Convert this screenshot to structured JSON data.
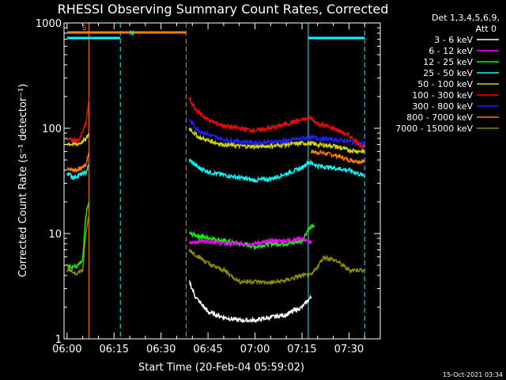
{
  "chart_data": {
    "type": "line",
    "title": "RHESSI Observing Summary Count Rates, Corrected",
    "xlabel": "Start Time (20-Feb-04 05:59:02)",
    "ylabel": "Corrected Count Rate (s⁻¹ detector⁻¹)",
    "yscale": "log",
    "ylim": [
      1,
      1000
    ],
    "xlim": [
      "05:59:02",
      "07:40:00"
    ],
    "x_ticks": [
      "06:00",
      "06:15",
      "06:30",
      "06:45",
      "07:00",
      "07:15",
      "07:30"
    ],
    "y_ticks": [
      "1",
      "10",
      "100",
      "1000"
    ],
    "legend": {
      "placement": "top-right",
      "header_line1": "Det 1,3,4,5,6,9,",
      "header_line2": "Att 0"
    },
    "footer_date": "15-Oct-2021 03:34",
    "markers": [
      {
        "label": "S",
        "color": "#ff8000",
        "x_start": "06:00",
        "x_end": "06:38"
      },
      {
        "label": "N",
        "color": "#00ffff",
        "x_start": "06:00",
        "x_end": "06:17"
      },
      {
        "label": "",
        "color": "#00ffff",
        "x_start": "07:17",
        "x_end": "07:35"
      }
    ],
    "vlines": [
      {
        "x": "06:07",
        "color": "#ff8000",
        "style": "solid"
      },
      {
        "x": "06:17",
        "color": "#00ffff",
        "style": "dashed"
      },
      {
        "x": "06:38",
        "color": "#ff8000",
        "style": "dashed"
      },
      {
        "x": "07:17",
        "color": "#00ffff",
        "style": "solid"
      },
      {
        "x": "07:35",
        "color": "#00ffff",
        "style": "dashed"
      }
    ],
    "series": [
      {
        "name": "3 - 6 keV",
        "color": "#ffffff",
        "segments": [
          {
            "t": [
              "06:39",
              "06:41",
              "06:45",
              "06:50",
              "06:55",
              "07:00",
              "07:05",
              "07:10",
              "07:15",
              "07:18"
            ],
            "v": [
              3.5,
              2.5,
              1.8,
              1.6,
              1.5,
              1.5,
              1.6,
              1.7,
              2.0,
              2.5
            ]
          }
        ]
      },
      {
        "name": "6 - 12 keV",
        "color": "#ff00ff",
        "segments": [
          {
            "t": [
              "06:39",
              "06:42",
              "06:46",
              "06:50",
              "06:55",
              "07:00",
              "07:05",
              "07:10",
              "07:15",
              "07:18"
            ],
            "v": [
              8,
              8.5,
              8.5,
              8,
              8,
              8,
              8.5,
              8.5,
              9,
              8
            ]
          }
        ]
      },
      {
        "name": "12 - 25 keV",
        "color": "#00ff00",
        "segments": [
          {
            "t": [
              "06:00",
              "06:03",
              "06:05",
              "06:06",
              "06:07"
            ],
            "v": [
              5,
              4.8,
              5.5,
              15,
              20
            ]
          },
          {
            "t": [
              "06:39",
              "06:42",
              "06:46",
              "06:50",
              "06:55",
              "07:00",
              "07:05",
              "07:10",
              "07:15",
              "07:17",
              "07:19"
            ],
            "v": [
              10,
              9.5,
              9,
              8.5,
              8,
              7.5,
              8,
              8,
              8.5,
              11,
              12
            ]
          }
        ]
      },
      {
        "name": "25 - 50 keV",
        "color": "#00ffff",
        "segments": [
          {
            "t": [
              "06:00",
              "06:02",
              "06:04",
              "06:05",
              "06:06",
              "06:07"
            ],
            "v": [
              38,
              34,
              36,
              37,
              38,
              45
            ]
          },
          {
            "t": [
              "06:39",
              "06:42",
              "06:46",
              "06:50",
              "06:55",
              "07:00",
              "07:05",
              "07:10",
              "07:15",
              "07:17",
              "07:20",
              "07:25",
              "07:30",
              "07:35"
            ],
            "v": [
              50,
              42,
              38,
              36,
              34,
              32,
              33,
              37,
              42,
              48,
              44,
              42,
              40,
              35
            ]
          }
        ]
      },
      {
        "name": "50 - 100 keV",
        "color": "#d4d400",
        "segments": [
          {
            "t": [
              "06:00",
              "06:02",
              "06:04",
              "06:06",
              "06:07"
            ],
            "v": [
              72,
              70,
              72,
              78,
              90
            ]
          },
          {
            "t": [
              "06:39",
              "06:42",
              "06:46",
              "06:50",
              "06:55",
              "07:00",
              "07:05",
              "07:10",
              "07:15",
              "07:17",
              "07:20",
              "07:25",
              "07:30",
              "07:35"
            ],
            "v": [
              100,
              82,
              75,
              70,
              68,
              67,
              68,
              70,
              72,
              72,
              70,
              68,
              62,
              60
            ]
          }
        ]
      },
      {
        "name": "100 - 300 keV",
        "color": "#ff0000",
        "segments": [
          {
            "t": [
              "06:00",
              "06:02",
              "06:04",
              "06:06",
              "06:07"
            ],
            "v": [
              80,
              76,
              78,
              110,
              190
            ]
          },
          {
            "t": [
              "06:39",
              "06:41",
              "06:45",
              "06:50",
              "06:55",
              "07:00",
              "07:05",
              "07:10",
              "07:15",
              "07:18",
              "07:20",
              "07:25",
              "07:30",
              "07:35"
            ],
            "v": [
              190,
              150,
              120,
              105,
              100,
              95,
              100,
              110,
              120,
              125,
              110,
              100,
              85,
              65
            ]
          }
        ]
      },
      {
        "name": "300 - 800 keV",
        "color": "#2020ff",
        "segments": [
          {
            "t": [
              "06:39",
              "06:42",
              "06:46",
              "06:50",
              "06:55",
              "07:00",
              "07:05",
              "07:10",
              "07:15",
              "07:18",
              "07:20",
              "07:25",
              "07:30",
              "07:35"
            ],
            "v": [
              120,
              95,
              85,
              78,
              75,
              73,
              74,
              76,
              80,
              82,
              80,
              78,
              75,
              70
            ]
          }
        ]
      },
      {
        "name": "800 - 7000 keV",
        "color": "#ff8000",
        "segments": [
          {
            "t": [
              "06:00",
              "06:02",
              "06:04",
              "06:06",
              "06:07"
            ],
            "v": [
              42,
              40,
              41,
              45,
              60
            ]
          },
          {
            "t": [
              "07:18",
              "07:22",
              "07:26",
              "07:30",
              "07:35"
            ],
            "v": [
              60,
              58,
              55,
              50,
              48
            ]
          }
        ]
      },
      {
        "name": "7000 - 15000 keV",
        "color": "#8b8b00",
        "segments": [
          {
            "t": [
              "06:00",
              "06:03",
              "06:05",
              "06:06",
              "06:07"
            ],
            "v": [
              4.5,
              4.2,
              4.5,
              10,
              15
            ]
          },
          {
            "t": [
              "06:39",
              "06:42",
              "06:46",
              "06:50",
              "06:55",
              "07:00",
              "07:05",
              "07:10",
              "07:15",
              "07:18",
              "07:22",
              "07:26",
              "07:30",
              "07:35"
            ],
            "v": [
              7,
              6,
              5,
              4.5,
              3.5,
              3.5,
              3.4,
              3.6,
              4,
              4,
              6,
              5.5,
              4.5,
              4.5
            ]
          }
        ]
      }
    ]
  }
}
